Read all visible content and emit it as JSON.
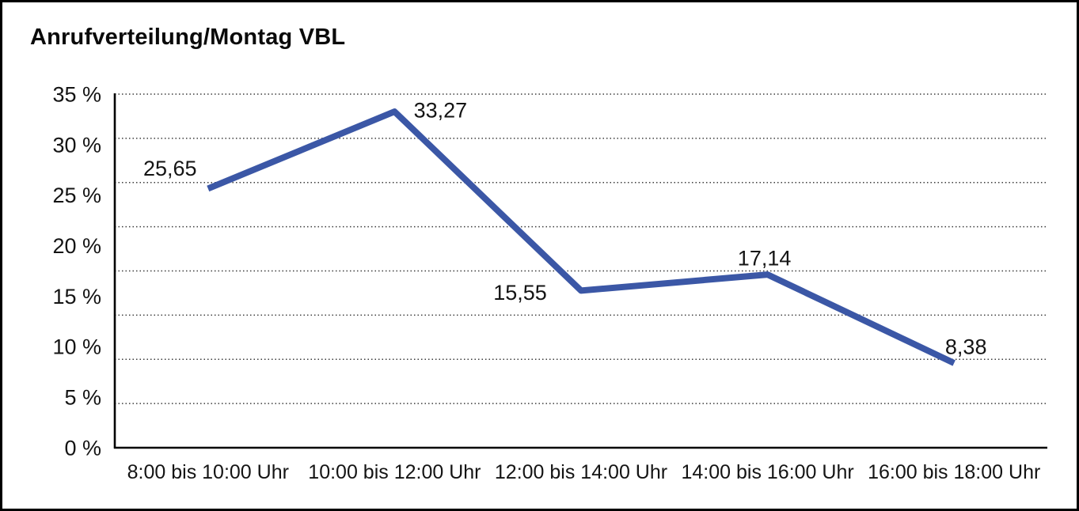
{
  "title": "Anrufverteilung/Montag VBL",
  "chart_data": {
    "type": "line",
    "title": "Anrufverteilung/Montag VBL",
    "categories": [
      "8:00 bis 10:00 Uhr",
      "10:00 bis 12:00 Uhr",
      "12:00 bis 14:00 Uhr",
      "14:00 bis 16:00 Uhr",
      "16:00 bis 18:00 Uhr"
    ],
    "values": [
      25.65,
      33.27,
      15.55,
      17.14,
      8.38
    ],
    "value_labels": [
      "25,65",
      "33,27",
      "15,55",
      "17,14",
      "8,38"
    ],
    "xlabel": "",
    "ylabel": "",
    "ylim": [
      0,
      35
    ],
    "y_tick_labels": [
      "35 %",
      "30 %",
      "25 %",
      "20 %",
      "15 %",
      "10 %",
      "5 %",
      "0 %"
    ],
    "grid": "horizontal-dotted",
    "gridline_intervals": 8,
    "legend_position": "none",
    "unit": "%"
  },
  "colors": {
    "line": "#3B57A6",
    "text": "#141414",
    "grid_dotted": "#3c3c3c",
    "axis": "#000000",
    "background": "#ffffff",
    "border": "#000000"
  }
}
